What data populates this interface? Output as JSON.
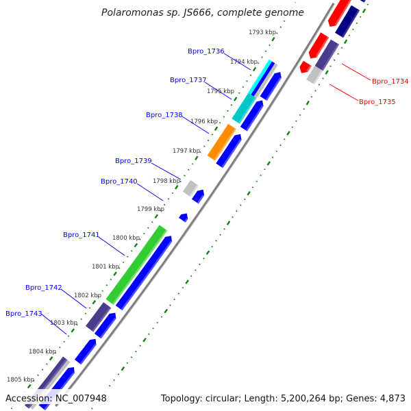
{
  "title": "Polaromonas sp. JS666, complete genome",
  "footer": {
    "accession": "Accession: NC_007948",
    "summary": "Topology: circular; Length: 5,200,264 bp; Genes: 4,873"
  },
  "tick_labels": [
    "1793 kbp",
    "1794 kbp",
    "1795 kbp",
    "1796 kbp",
    "1797 kbp",
    "1798 kbp",
    "1799 kbp",
    "1800 kbp",
    "1801 kbp",
    "1802 kbp",
    "1803 kbp",
    "1804 kbp",
    "1805 kbp"
  ],
  "gene_labels": {
    "forward": [
      "Bpro_1736",
      "Bpro_1737",
      "Bpro_1738",
      "Bpro_1739",
      "Bpro_1740",
      "Bpro_1741",
      "Bpro_1742",
      "Bpro_1743"
    ],
    "reverse": [
      "Bpro_1734",
      "Bpro_1735"
    ]
  },
  "colors": {
    "forward_label": "#0000ff",
    "reverse_label": "#ff0000",
    "backbone": "#808080",
    "ticks": "#108010"
  }
}
